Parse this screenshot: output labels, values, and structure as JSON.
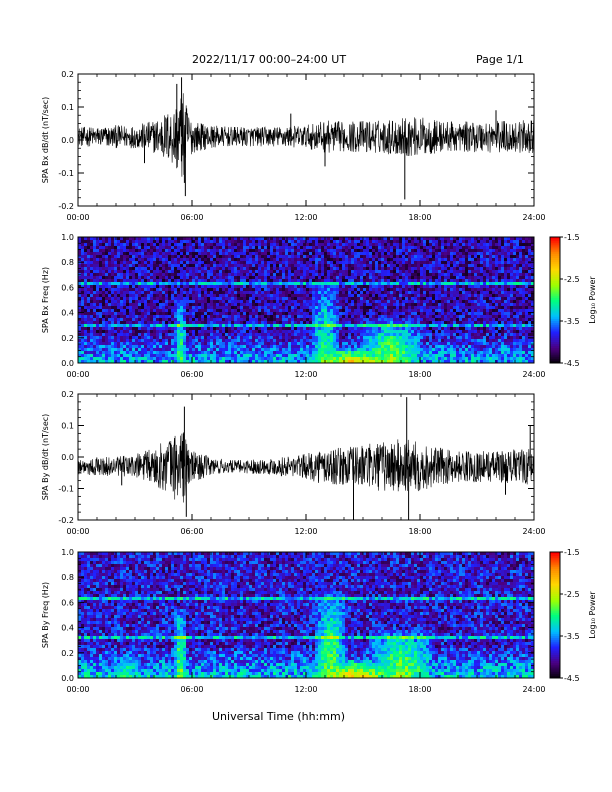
{
  "header": {
    "title": "2022/11/17  00:00–24:00 UT",
    "page": "Page 1/1"
  },
  "xlabel": "Universal Time (hh:mm)",
  "colorbar_label": "Log₁₀ Power",
  "colormap": [
    "#000000",
    "#4b0082",
    "#2020ff",
    "#00bfff",
    "#00ff7f",
    "#a0ff00",
    "#ffd700",
    "#ff8c00",
    "#ff0000"
  ],
  "chart_data": [
    {
      "type": "line",
      "ylabel": "SPA Bx dB/dt (nT/sec)",
      "x_ticks": [
        "00:00",
        "06:00",
        "12:00",
        "18:00",
        "24:00"
      ],
      "y_ticks": [
        "0.2",
        "0.1",
        "0.0",
        "-0.1",
        "-0.2"
      ],
      "xlim": [
        0,
        24
      ],
      "ylim": [
        -0.2,
        0.2
      ],
      "envelope_hours": [
        0,
        1,
        2,
        3,
        4,
        5,
        5.5,
        6,
        7,
        8,
        10,
        12,
        13,
        14,
        15,
        16,
        17,
        18,
        19,
        20,
        22,
        24
      ],
      "envelope_amp": [
        0.03,
        0.03,
        0.035,
        0.035,
        0.05,
        0.09,
        0.14,
        0.05,
        0.035,
        0.03,
        0.03,
        0.035,
        0.05,
        0.045,
        0.05,
        0.05,
        0.06,
        0.06,
        0.05,
        0.045,
        0.05,
        0.05
      ],
      "baseline": 0.01,
      "spikes": [
        [
          5.2,
          0.17
        ],
        [
          5.45,
          0.19
        ],
        [
          5.6,
          -0.13
        ],
        [
          5.65,
          -0.17
        ],
        [
          11.2,
          0.08
        ],
        [
          17.2,
          -0.18
        ],
        [
          13.0,
          -0.08
        ],
        [
          3.5,
          -0.07
        ],
        [
          22.0,
          0.09
        ]
      ]
    },
    {
      "type": "heatmap",
      "ylabel": "SPA Bx Freq (Hz)",
      "x_ticks": [
        "00:00",
        "06:00",
        "12:00",
        "18:00",
        "24:00"
      ],
      "y_ticks": [
        "1.0",
        "0.8",
        "0.6",
        "0.4",
        "0.2",
        "0.0"
      ],
      "xlim": [
        0,
        24
      ],
      "ylim": [
        0.0,
        1.0
      ],
      "colorbar_ticks": [
        "-1.5",
        "-2.5",
        "-3.5",
        "-4.5"
      ],
      "zlim": [
        -4.5,
        -1.5
      ],
      "background_level": -4.0,
      "features": [
        {
          "hour": 5.4,
          "width": 0.6,
          "fmax": 0.5,
          "level": -2.8
        },
        {
          "hour": 13.0,
          "width": 1.5,
          "fmax": 0.65,
          "level": -2.9
        },
        {
          "hour": 16.5,
          "width": 3.5,
          "fmax": 0.35,
          "level": -2.6
        },
        {
          "hour": 14.5,
          "width": 5.5,
          "fmax": 0.12,
          "level": -2.2
        }
      ],
      "line_freqs": [
        0.62,
        0.3
      ]
    },
    {
      "type": "line",
      "ylabel": "SPA By dB/dt (nT/sec)",
      "x_ticks": [
        "00:00",
        "06:00",
        "12:00",
        "18:00",
        "24:00"
      ],
      "y_ticks": [
        "0.2",
        "0.1",
        "0.0",
        "-0.1",
        "-0.2"
      ],
      "xlim": [
        0,
        24
      ],
      "ylim": [
        -0.2,
        0.2
      ],
      "envelope_hours": [
        0,
        1,
        2,
        3,
        4,
        5,
        5.5,
        6,
        7,
        8,
        10,
        12,
        13,
        14,
        15,
        16,
        17,
        18,
        19,
        20,
        22,
        24
      ],
      "envelope_amp": [
        0.025,
        0.03,
        0.03,
        0.04,
        0.06,
        0.1,
        0.13,
        0.05,
        0.03,
        0.02,
        0.025,
        0.04,
        0.06,
        0.06,
        0.07,
        0.08,
        0.09,
        0.08,
        0.06,
        0.05,
        0.05,
        0.06
      ],
      "baseline": -0.03,
      "spikes": [
        [
          5.6,
          0.16
        ],
        [
          5.7,
          -0.19
        ],
        [
          14.5,
          -0.2
        ],
        [
          17.3,
          0.19
        ],
        [
          17.4,
          -0.2
        ],
        [
          23.8,
          0.1
        ],
        [
          22.5,
          -0.12
        ],
        [
          2.3,
          -0.09
        ]
      ]
    },
    {
      "type": "heatmap",
      "ylabel": "SPA By Freq (Hz)",
      "x_ticks": [
        "00:00",
        "06:00",
        "12:00",
        "18:00",
        "24:00"
      ],
      "y_ticks": [
        "1.0",
        "0.8",
        "0.6",
        "0.4",
        "0.2",
        "0.0"
      ],
      "xlim": [
        0,
        24
      ],
      "ylim": [
        0.0,
        1.0
      ],
      "colorbar_ticks": [
        "-1.5",
        "-2.5",
        "-3.5",
        "-4.5"
      ],
      "zlim": [
        -4.5,
        -1.5
      ],
      "background_level": -3.9,
      "features": [
        {
          "hour": 5.4,
          "width": 0.7,
          "fmax": 0.55,
          "level": -2.6
        },
        {
          "hour": 13.3,
          "width": 1.6,
          "fmax": 0.7,
          "level": -2.7
        },
        {
          "hour": 17.0,
          "width": 3.5,
          "fmax": 0.38,
          "level": -2.6
        },
        {
          "hour": 14.5,
          "width": 5.0,
          "fmax": 0.15,
          "level": -2.2
        },
        {
          "hour": 2.5,
          "width": 1.5,
          "fmax": 0.2,
          "level": -3.0
        }
      ],
      "line_freqs": [
        0.62,
        0.32
      ]
    }
  ]
}
